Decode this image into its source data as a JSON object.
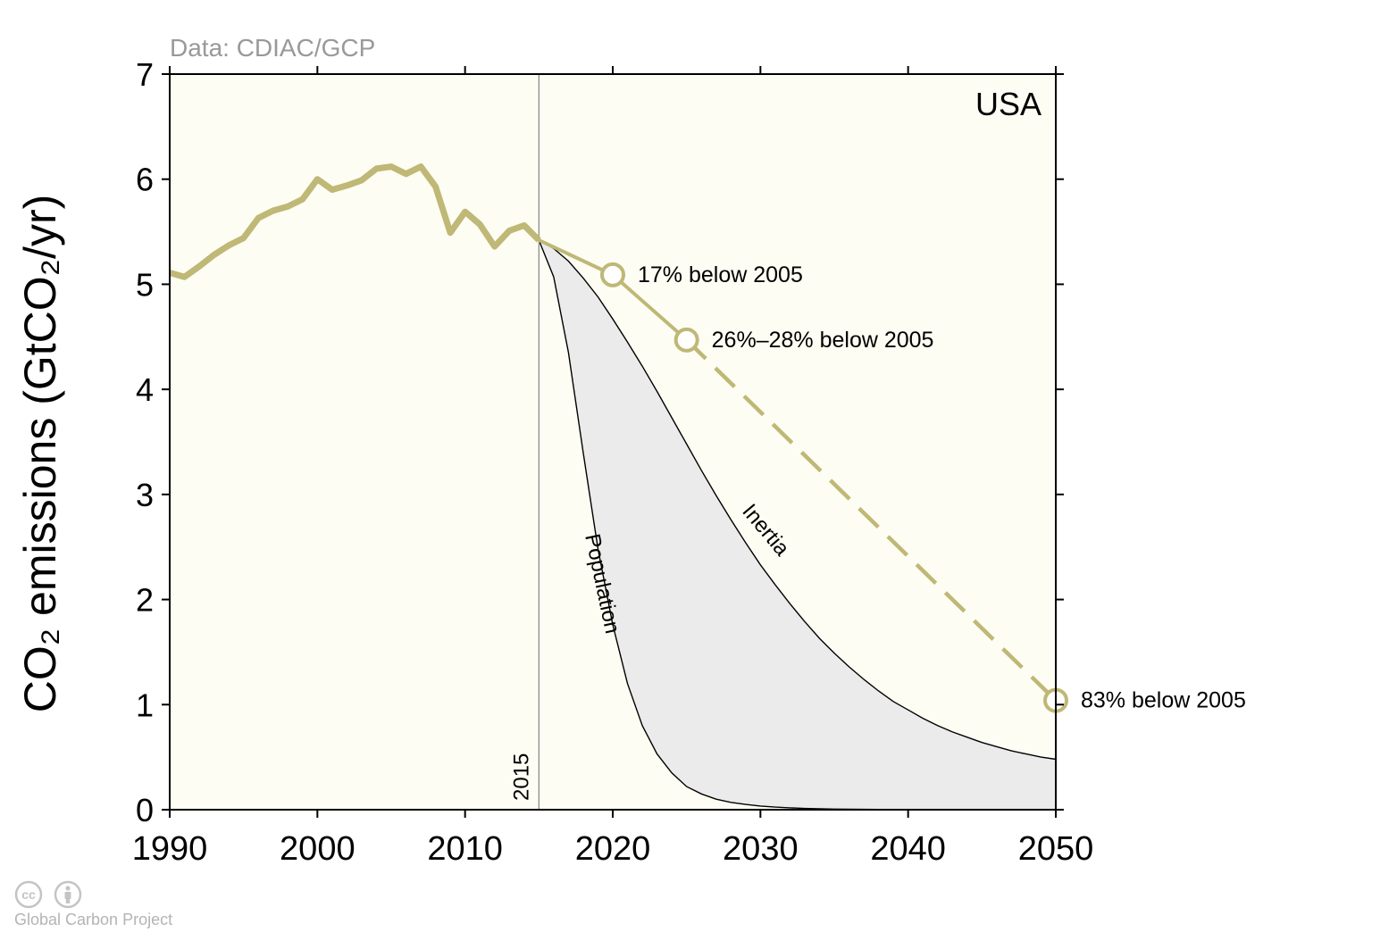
{
  "source_note": "Data: CDIAC/GCP",
  "footer_credit": "Global Carbon Project",
  "colors": {
    "plot_bg": "#fdfdf3",
    "history_line": "#bfb876",
    "band_fill": "#ebebeb",
    "band_edge": "#000000",
    "divider": "#8c8c8c"
  },
  "icons": [
    "cc-icon",
    "attribution-icon"
  ],
  "chart_data": {
    "type": "line",
    "region_label": "USA",
    "ylabel": "CO₂ emissions (GtCO₂/yr)",
    "xlim": [
      1990,
      2050
    ],
    "ylim": [
      0,
      7
    ],
    "x_ticks": [
      "1990",
      "2000",
      "2010",
      "2020",
      "2030",
      "2040",
      "2050"
    ],
    "y_ticks": [
      "0",
      "1",
      "2",
      "3",
      "4",
      "5",
      "6",
      "7"
    ],
    "divider": {
      "x": 2015,
      "label": "2015"
    },
    "history": {
      "x": [
        1990,
        1991,
        1992,
        1993,
        1994,
        1995,
        1996,
        1997,
        1998,
        1999,
        2000,
        2001,
        2002,
        2003,
        2004,
        2005,
        2006,
        2007,
        2008,
        2009,
        2010,
        2011,
        2012,
        2013,
        2014,
        2015
      ],
      "y": [
        5.11,
        5.07,
        5.17,
        5.28,
        5.37,
        5.44,
        5.63,
        5.7,
        5.74,
        5.81,
        6.0,
        5.9,
        5.94,
        5.99,
        6.1,
        6.12,
        6.05,
        6.12,
        5.93,
        5.49,
        5.69,
        5.57,
        5.36,
        5.51,
        5.56,
        5.42
      ]
    },
    "pledge_solid": {
      "x": [
        2015,
        2020,
        2025
      ],
      "y": [
        5.42,
        5.09,
        4.47
      ]
    },
    "pledge_dashed": {
      "x": [
        2025,
        2050
      ],
      "y": [
        4.47,
        1.04
      ]
    },
    "targets": [
      {
        "x": 2020,
        "y": 5.09,
        "label": "17% below 2005"
      },
      {
        "x": 2025,
        "y": 4.47,
        "label": "26%–28% below 2005"
      },
      {
        "x": 2050,
        "y": 1.04,
        "label": "83% below 2005"
      }
    ],
    "inertia_curve": {
      "label": "Inertia",
      "x": [
        2015,
        2016,
        2017,
        2018,
        2019,
        2020,
        2021,
        2022,
        2023,
        2024,
        2025,
        2026,
        2027,
        2028,
        2029,
        2030,
        2031,
        2032,
        2033,
        2034,
        2035,
        2036,
        2037,
        2038,
        2039,
        2040,
        2041,
        2042,
        2043,
        2044,
        2045,
        2046,
        2047,
        2048,
        2049,
        2050
      ],
      "y": [
        5.42,
        5.34,
        5.22,
        5.06,
        4.88,
        4.67,
        4.45,
        4.22,
        3.98,
        3.73,
        3.48,
        3.23,
        2.99,
        2.76,
        2.54,
        2.33,
        2.14,
        1.96,
        1.79,
        1.63,
        1.49,
        1.36,
        1.24,
        1.13,
        1.03,
        0.95,
        0.87,
        0.8,
        0.74,
        0.69,
        0.64,
        0.6,
        0.56,
        0.53,
        0.5,
        0.48
      ]
    },
    "population_curve": {
      "label": "Population",
      "x": [
        2015,
        2016,
        2017,
        2018,
        2019,
        2020,
        2021,
        2022,
        2023,
        2024,
        2025,
        2026,
        2027,
        2028,
        2029,
        2030,
        2031,
        2032,
        2033,
        2035,
        2037,
        2040,
        2045,
        2050
      ],
      "y": [
        5.42,
        5.07,
        4.35,
        3.4,
        2.48,
        1.76,
        1.2,
        0.8,
        0.53,
        0.35,
        0.22,
        0.15,
        0.1,
        0.07,
        0.05,
        0.035,
        0.025,
        0.018,
        0.012,
        0.006,
        0.003,
        0.001,
        0.0,
        0.0
      ]
    }
  }
}
